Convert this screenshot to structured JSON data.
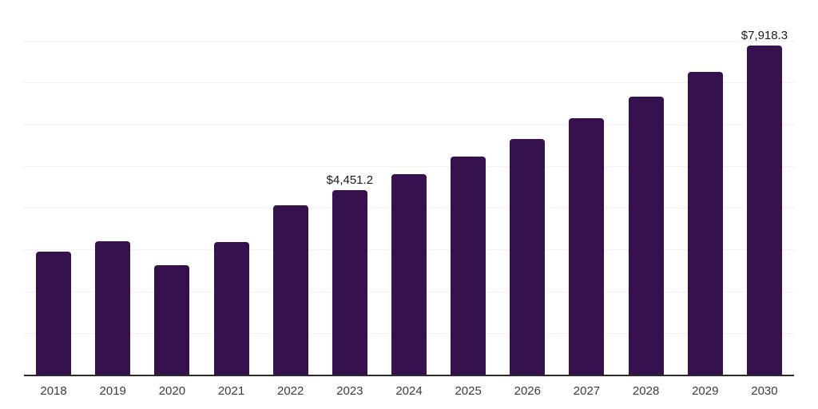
{
  "chart_data": {
    "type": "bar",
    "title": "",
    "xlabel": "",
    "ylabel": "",
    "categories": [
      "2018",
      "2019",
      "2020",
      "2021",
      "2022",
      "2023",
      "2024",
      "2025",
      "2026",
      "2027",
      "2028",
      "2029",
      "2030"
    ],
    "series": [
      {
        "name": "market-value",
        "values": [
          2965,
          3215,
          2640,
          3200,
          4080,
          4451.2,
          4820,
          5240,
          5665,
          6165,
          6690,
          7270,
          7918.3
        ]
      }
    ],
    "data_labels": [
      {
        "category_index": 5,
        "text": "$4,451.2"
      },
      {
        "category_index": 12,
        "text": "$7,918.3"
      }
    ],
    "ylim": [
      0,
      9000
    ],
    "grid_step": 1000,
    "grid": "horizontal",
    "legend": "none",
    "y_tick_labels": "none",
    "colors": {
      "bar": "#35114D",
      "grid": "#f2f2f2",
      "axis": "#2b2b2b",
      "tick_label": "#3c3c3c",
      "data_label": "#1a1a1a",
      "background": "#ffffff"
    }
  }
}
